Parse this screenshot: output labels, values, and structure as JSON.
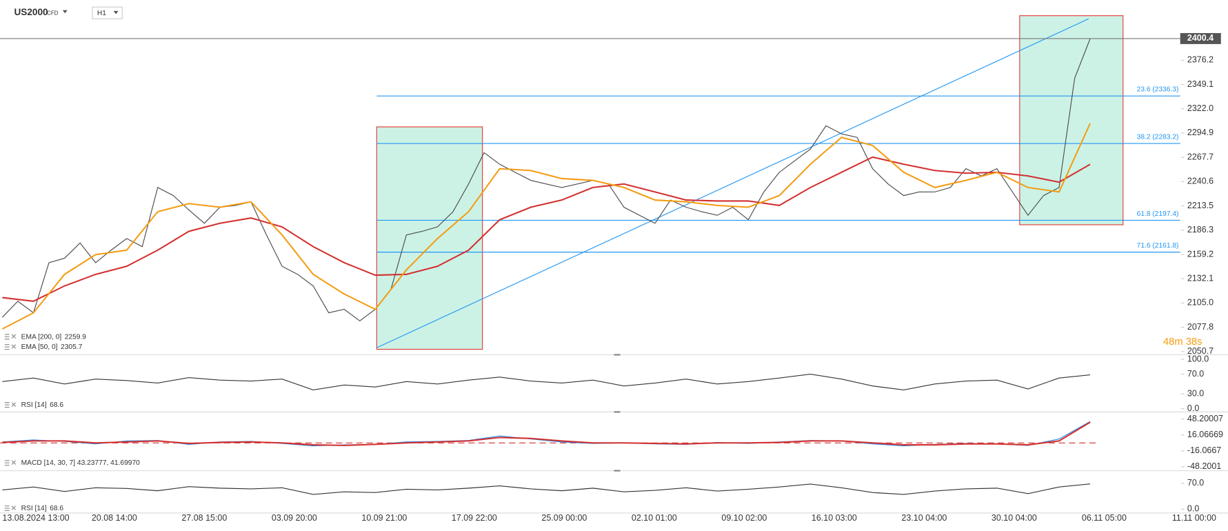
{
  "header": {
    "symbol": "US2000",
    "symbol_type": "CFD",
    "timeframe": "H1"
  },
  "countdown": "48m 38s",
  "chart_data": [
    {
      "type": "line",
      "ylim": [
        2048,
        2426
      ],
      "yticks": [
        2376.2,
        2349.1,
        {
          "value": 2322,
          "label": "2322.0"
        },
        2294.9,
        2267.7,
        2240.6,
        2213.5,
        2186.3,
        2159.2,
        2132.1,
        {
          "value": 2105,
          "label": "2105.0"
        },
        2077.8,
        2050.7
      ],
      "grid": false,
      "series": [
        {
          "color": "#4a4a4a",
          "values": [
            2089,
            2107,
            2094,
            2150,
            2155,
            2172,
            2150,
            2164,
            2177,
            2168,
            2234,
            2225,
            2209,
            2194,
            2212,
            2214,
            2218,
            2181,
            2146,
            2137,
            2124,
            2094,
            2098,
            2085,
            2098,
            2120,
            2181,
            2185,
            2190,
            2207,
            2238,
            2273,
            2260,
            2251,
            2242,
            2238,
            2234,
            2238,
            2242,
            2238,
            2212,
            2203,
            2194,
            2220,
            2212,
            2207,
            2203,
            2212,
            2198,
            2229,
            2251,
            2264,
            2277,
            2303,
            2294,
            2290,
            2255,
            2238,
            2225,
            2229,
            2229,
            2234,
            2255,
            2247,
            2255,
            2229,
            2203,
            2225,
            2234,
            2356,
            2400.4
          ]
        },
        {
          "name": "EMA [200,  0]",
          "color": "#d32f2f",
          "values": [
            2111,
            2107,
            2124,
            2137,
            2146,
            2164,
            2185,
            2194,
            2200,
            2190,
            2168,
            2150,
            2136,
            2137,
            2146,
            2164,
            2198,
            2212,
            2220,
            2234,
            2238,
            2229,
            2220,
            2219,
            2219,
            2214,
            2234,
            2251,
            2268,
            2260,
            2253,
            2250,
            2251,
            2247,
            2240,
            2259.9
          ]
        },
        {
          "name": "EMA [50,  0]",
          "color": "#f39c12",
          "values": [
            2076,
            2094,
            2137,
            2159,
            2164,
            2207,
            2216,
            2212,
            2218,
            2181,
            2137,
            2115,
            2098,
            2142,
            2177,
            2207,
            2255,
            2253,
            2244,
            2242,
            2234,
            2220,
            2218,
            2214,
            2212,
            2225,
            2260,
            2290,
            2281,
            2251,
            2234,
            2242,
            2251,
            2234,
            2229,
            2305.7
          ]
        }
      ],
      "fib_color": "#2196f3",
      "fib_levels": [
        {
          "value": 2336.3,
          "label": "23.6 (2336.3)"
        },
        {
          "value": 2283.2,
          "label": "38.2 (2283.2)"
        },
        {
          "value": 2197.4,
          "label": "61.8 (2197.4)"
        },
        {
          "value": 2161.8,
          "label": "71.6 (2161.8)"
        }
      ]
    },
    {
      "type": "line",
      "ylim": [
        -5,
        106
      ],
      "yticks": [
        {
          "value": 100,
          "label": "100.0"
        },
        {
          "value": 70,
          "label": "70.0"
        },
        {
          "value": 30,
          "label": "30.0"
        },
        {
          "value": 0,
          "label": "0.0"
        }
      ],
      "grid": false,
      "series": [
        {
          "name": "RSI [14]",
          "color": "#333333",
          "values": [
            55,
            62,
            50,
            60,
            57,
            52,
            63,
            58,
            56,
            60,
            38,
            48,
            44,
            55,
            50,
            58,
            64,
            56,
            52,
            58,
            46,
            52,
            60,
            50,
            55,
            62,
            70,
            60,
            46,
            38,
            50,
            56,
            58,
            40,
            62,
            68.6
          ]
        }
      ]
    },
    {
      "type": "line",
      "ylim": [
        -54.5,
        59.3
      ],
      "yticks": [
        48.20007,
        16.06669,
        -16.0667,
        -48.2001
      ],
      "grid": false,
      "legend": "MACD [14, 30, 7]  43.23777,  41.69970",
      "series": [
        {
          "color": "#1e88e5",
          "values": [
            2,
            6,
            3,
            -2,
            4,
            5,
            -3,
            2,
            3,
            -1,
            -6,
            -4,
            -3,
            2,
            3,
            5,
            14,
            8,
            2,
            -1,
            0,
            -2,
            -3,
            1,
            -1,
            2,
            5,
            4,
            -2,
            -6,
            -3,
            -1,
            -2,
            -5,
            8,
            43.23777
          ]
        },
        {
          "color": "#d32f2f",
          "values": [
            1,
            4,
            4,
            0,
            2,
            4,
            -1,
            1,
            2,
            0,
            -4,
            -5,
            -3,
            0,
            2,
            4,
            11,
            9,
            4,
            0,
            0,
            -1,
            -2,
            0,
            0,
            1,
            4,
            4,
            0,
            -4,
            -4,
            -2,
            -2,
            -4,
            4,
            41.6997
          ]
        }
      ]
    },
    {
      "type": "line",
      "ylim": [
        -4,
        100
      ],
      "yticks": [
        {
          "value": 70,
          "label": "70.0"
        },
        {
          "value": 0,
          "label": "0.0"
        }
      ],
      "grid": false,
      "series": [
        {
          "name": "RSI [14]",
          "color": "#333333",
          "values": [
            52,
            60,
            48,
            58,
            56,
            50,
            61,
            57,
            55,
            58,
            40,
            47,
            45,
            54,
            52,
            57,
            63,
            55,
            50,
            57,
            47,
            51,
            58,
            49,
            54,
            60,
            68,
            58,
            45,
            40,
            49,
            55,
            57,
            42,
            60,
            68.6
          ]
        }
      ],
      "x_labels": [
        "13.08.2024  13:00",
        "20.08  14:00",
        "27.08  15:00",
        "03.09  20:00",
        "10.09  21:00",
        "17.09  22:00",
        "25.09  00:00",
        "02.10  01:00",
        "09.10  02:00",
        "16.10  03:00",
        "23.10  04:00",
        "30.10  04:00",
        "06.11  05:00",
        "11.11  00:00"
      ]
    }
  ]
}
